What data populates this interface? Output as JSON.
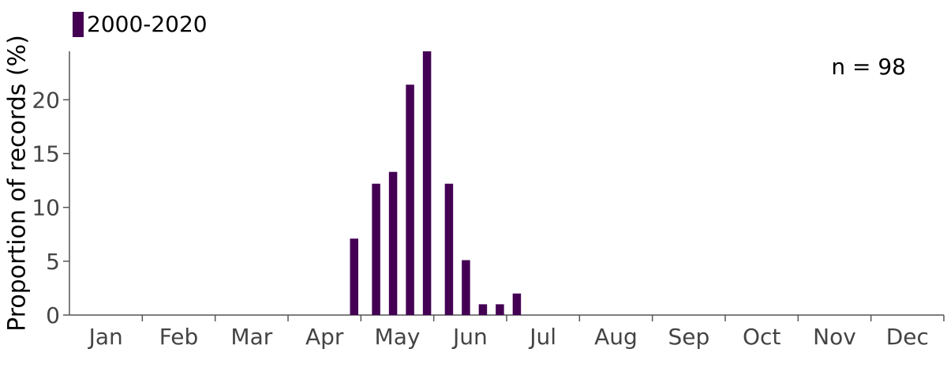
{
  "chart_data": {
    "type": "bar",
    "legend": [
      {
        "name": "2000-2020",
        "color": "#440154"
      }
    ],
    "annotation": "n = 98",
    "ylabel": "Proportion of records (%)",
    "xlabel": "",
    "ylim": [
      0,
      24.5
    ],
    "yticks": [
      0,
      5,
      10,
      15,
      20
    ],
    "months": [
      "Jan",
      "Feb",
      "Mar",
      "Apr",
      "May",
      "Jun",
      "Jul",
      "Aug",
      "Sep",
      "Oct",
      "Nov",
      "Dec"
    ],
    "series": [
      {
        "name": "2000-2020",
        "color": "#440154",
        "bars": [
          {
            "month": "Apr",
            "week": 4,
            "value": 7.1
          },
          {
            "month": "May",
            "week": 1,
            "value": 12.2
          },
          {
            "month": "May",
            "week": 2,
            "value": 13.3
          },
          {
            "month": "May",
            "week": 3,
            "value": 21.4
          },
          {
            "month": "May",
            "week": 4,
            "value": 24.5
          },
          {
            "month": "Jun",
            "week": 1,
            "value": 12.2
          },
          {
            "month": "Jun",
            "week": 2,
            "value": 5.1
          },
          {
            "month": "Jun",
            "week": 3,
            "value": 1.0
          },
          {
            "month": "Jun",
            "week": 4,
            "value": 1.0
          },
          {
            "month": "Jun",
            "week": 5,
            "value": 2.0
          }
        ]
      }
    ],
    "grid": false
  }
}
